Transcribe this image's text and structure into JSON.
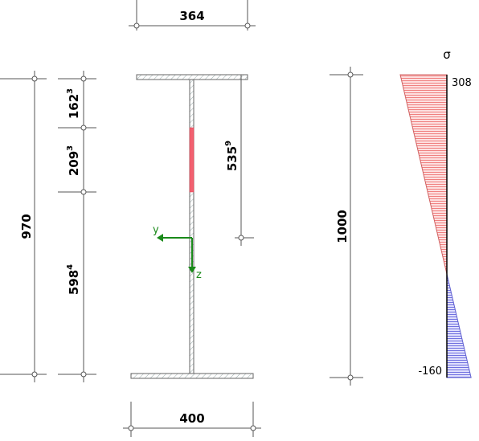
{
  "dimensions": {
    "top_flange_width": "364",
    "bottom_flange_width": "400",
    "total_height": "970",
    "seg1": {
      "main": "162",
      "sup": "3"
    },
    "seg2": {
      "main": "209",
      "sup": "3"
    },
    "seg3": {
      "main": "598",
      "sup": "4"
    },
    "web_dim": {
      "main": "535",
      "sup": "9"
    },
    "stress_height": "1000"
  },
  "axes": {
    "y": "y",
    "z": "z"
  },
  "stress": {
    "symbol": "σ",
    "top_value": "308",
    "bottom_value": "-160",
    "top_stress": 308,
    "bottom_stress": -160
  },
  "colors": {
    "tension_fill": "#f4a6a6",
    "compression_fill": "#a6a6f0",
    "highlight": "#f26070",
    "axis": "#1a8a1a",
    "outline": "#555555"
  }
}
